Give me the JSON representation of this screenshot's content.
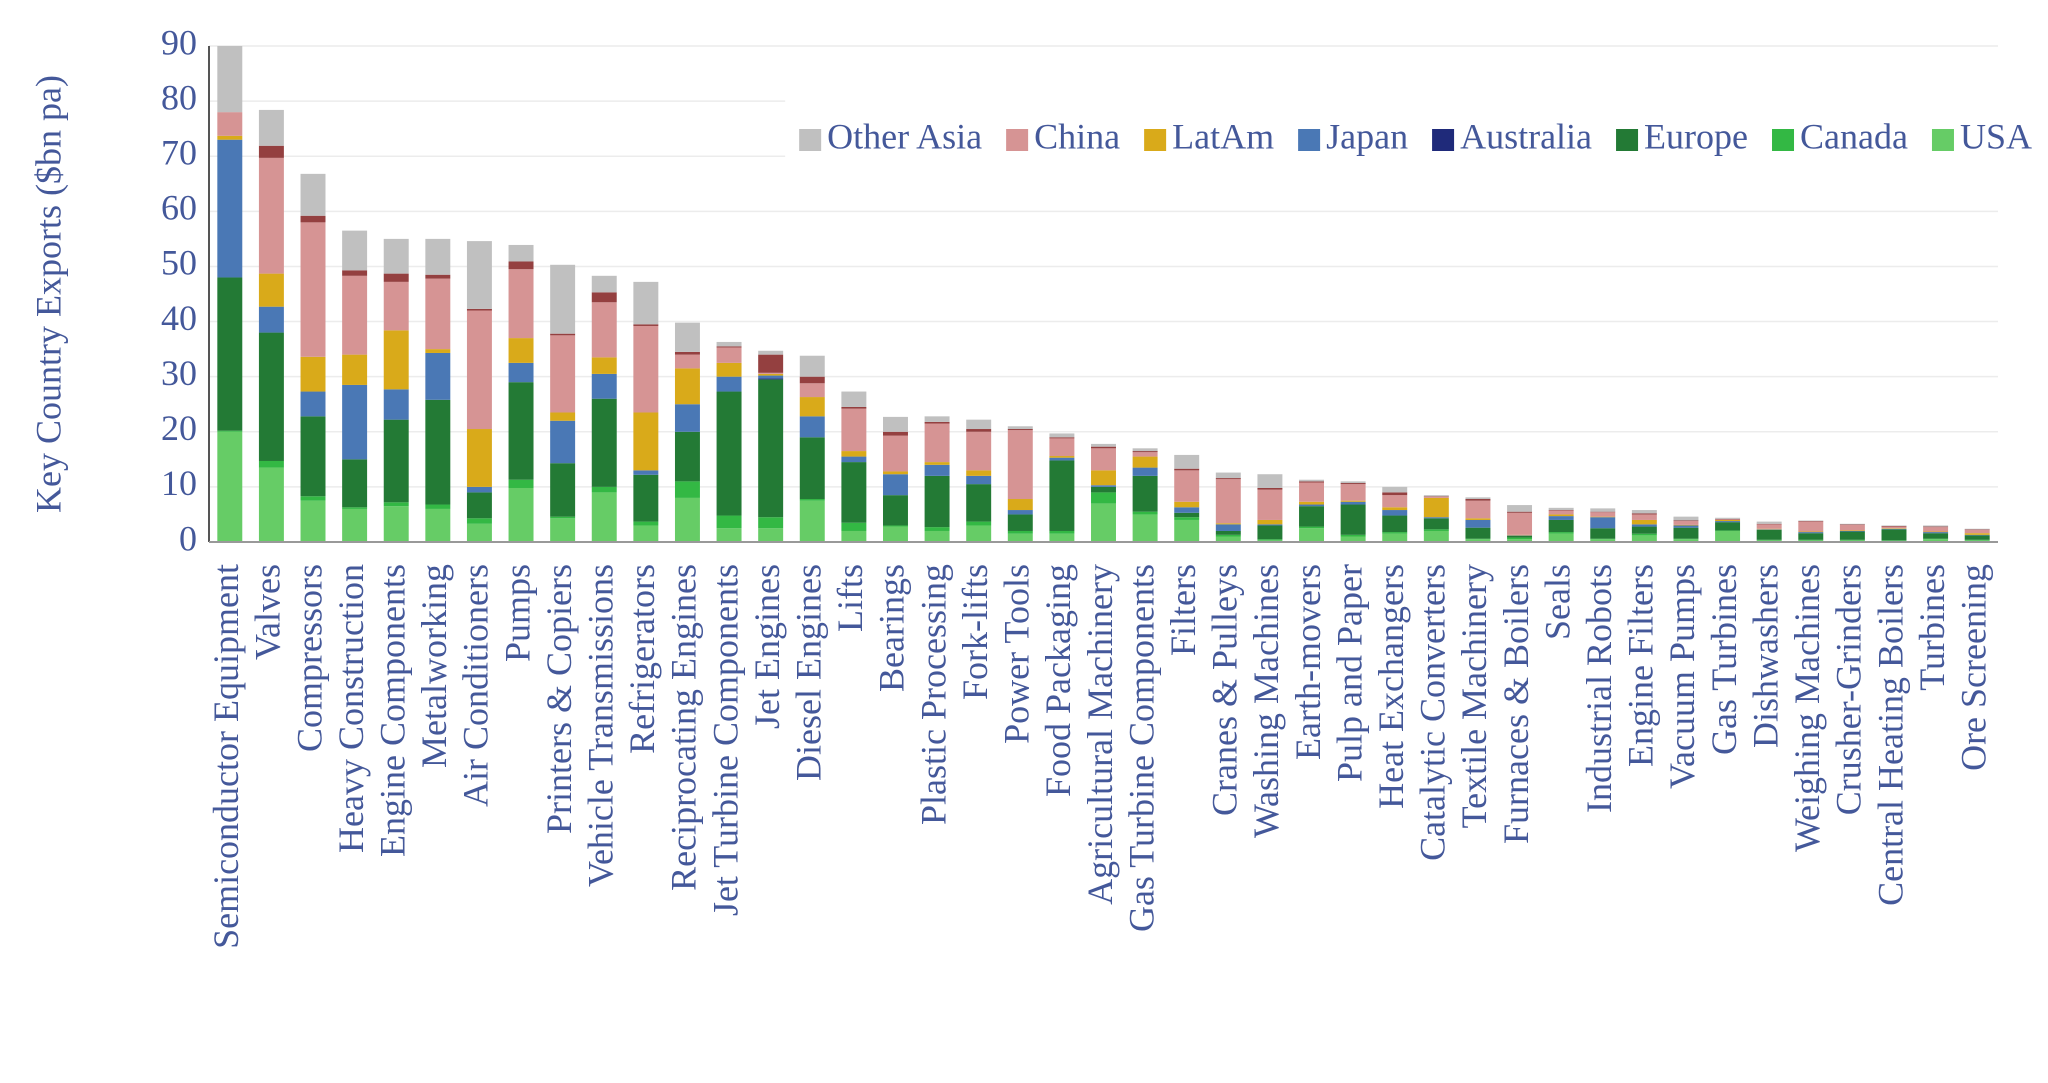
{
  "chart_data": {
    "type": "bar",
    "stacked": true,
    "ylabel": "Key Country Exports ($bn pa)",
    "categories": [
      "Semiconductor Equipment",
      "Valves",
      "Compressors",
      "Heavy Construction",
      "Engine Components",
      "Metalworking",
      "Air Conditioners",
      "Pumps",
      "Printers & Copiers",
      "Vehicle Transmissions",
      "Refrigerators",
      "Reciprocating Engines",
      "Jet Turbine Components",
      "Jet Engines",
      "Diesel Engines",
      "Lifts",
      "Bearings",
      "Plastic Processing",
      "Fork-lifts",
      "Power Tools",
      "Food Packaging",
      "Agricultural Machinery",
      "Gas Turbine Components",
      "Filters",
      "Cranes & Pulleys",
      "Washing Machines",
      "Earth-movers",
      "Pulp and Paper",
      "Heat Exchangers",
      "Catalytic Converters",
      "Textile Machinery",
      "Furnaces & Boilers",
      "Seals",
      "Industrial Robots",
      "Engine Filters",
      "Vacuum Pumps",
      "Gas Turbines",
      "Dishwashers",
      "Weighing Machines",
      "Crusher-Grinders",
      "Central Heating Boilers",
      "Turbines",
      "Ore Screening"
    ],
    "series": [
      {
        "name": "USA",
        "color": "#66cc66",
        "values": [
          20,
          13.5,
          7.5,
          6,
          6.5,
          6,
          3.3,
          9.8,
          4.3,
          9,
          3,
          8,
          2.5,
          2.5,
          7.5,
          2,
          2.8,
          2,
          3,
          1.5,
          1.5,
          7,
          5,
          4,
          1,
          0.3,
          2.5,
          1,
          1.5,
          2,
          0.5,
          0.5,
          1.5,
          0.5,
          1.2,
          0.5,
          2,
          0.3,
          0.3,
          0.3,
          0.2,
          0.5,
          0.3
        ]
      },
      {
        "name": "Canada",
        "color": "#33b844",
        "values": [
          0.2,
          1.2,
          0.8,
          0.3,
          0.7,
          0.8,
          1,
          1.5,
          0.3,
          1,
          0.7,
          3,
          2.3,
          2,
          0.3,
          1.5,
          0.2,
          0.7,
          0.7,
          0.5,
          0.5,
          2,
          0.5,
          0.5,
          0.3,
          0.2,
          0.3,
          0.3,
          0.3,
          0.3,
          0.1,
          0.3,
          0.3,
          0.1,
          0.3,
          0.1,
          0.1,
          0.1,
          0.1,
          0.1,
          0.1,
          0.1,
          0.1
        ]
      },
      {
        "name": "Europe",
        "color": "#237a35",
        "values": [
          27.8,
          23.3,
          14.5,
          8.7,
          15,
          19,
          4.7,
          17.7,
          9.7,
          16,
          8.5,
          9,
          22.5,
          25,
          11.2,
          11,
          5.5,
          9.3,
          6.8,
          3,
          12.8,
          1,
          6.5,
          0.8,
          0.7,
          2.5,
          3.7,
          5.5,
          3,
          2,
          2,
          0.3,
          2.2,
          1.9,
          1.3,
          2,
          1.5,
          1.8,
          1.2,
          1.5,
          2,
          1,
          0.8
        ]
      },
      {
        "name": "Australia",
        "color": "#1f2a7a",
        "values": [
          0,
          0,
          0,
          0,
          0,
          0,
          0,
          0,
          0,
          0,
          0,
          0,
          0,
          0.2,
          0,
          0,
          0,
          0,
          0,
          0,
          0,
          0,
          0,
          0,
          0,
          0,
          0,
          0,
          0,
          0,
          0,
          0,
          0,
          0,
          0,
          0,
          0,
          0,
          0,
          0,
          0,
          0,
          0
        ]
      },
      {
        "name": "Japan",
        "color": "#4a78b5",
        "values": [
          25,
          4.7,
          4.5,
          13.5,
          5.5,
          8.5,
          1,
          3.5,
          7.7,
          4.5,
          0.8,
          5,
          2.7,
          0.5,
          3.8,
          1,
          3.8,
          2,
          1.5,
          0.8,
          0.5,
          0.3,
          1.5,
          1,
          1.2,
          0.2,
          0.3,
          0.5,
          1,
          0.2,
          1.4,
          0.1,
          0.7,
          2,
          0.4,
          0.4,
          0.2,
          0.1,
          0.2,
          0.1,
          0.1,
          0.2,
          0.1
        ]
      },
      {
        "name": "LatAm",
        "color": "#d9aa1a",
        "values": [
          0.7,
          6,
          6.3,
          5.5,
          10.7,
          0.7,
          10.5,
          4.5,
          1.5,
          3,
          10.5,
          6.5,
          2.5,
          0.3,
          3.5,
          1,
          0.5,
          0.5,
          1,
          2,
          0.3,
          2.7,
          2,
          1,
          0.2,
          0.8,
          0.5,
          0.2,
          0.5,
          3.5,
          0.3,
          0.1,
          0.3,
          0.1,
          0.8,
          0.1,
          0.2,
          0.1,
          0.1,
          0.1,
          0.1,
          0.1,
          0.3
        ]
      },
      {
        "name": "China",
        "color": "#d69494",
        "values": [
          4.3,
          21,
          24.4,
          14.3,
          8.8,
          12.8,
          21.5,
          12.5,
          14,
          10,
          15.7,
          2.5,
          2.8,
          0.2,
          2.5,
          7.7,
          6.5,
          7,
          7,
          12.5,
          3.2,
          4,
          0.8,
          5.7,
          8,
          5.5,
          3.5,
          3,
          2.2,
          0.2,
          3.2,
          4,
          0.7,
          0.8,
          1,
          0.7,
          0.1,
          0.8,
          1.8,
          1,
          0.3,
          0.8,
          0.6
        ]
      },
      {
        "name": null,
        "color": "#944040",
        "values": [
          0,
          2.2,
          1.2,
          1,
          1.5,
          0.7,
          0.3,
          1.4,
          0.3,
          1.8,
          0.3,
          0.5,
          0.2,
          3.3,
          1.2,
          0.3,
          0.7,
          0.3,
          0.5,
          0.2,
          0.2,
          0.3,
          0.2,
          0.3,
          0.2,
          0.3,
          0.2,
          0.2,
          0.5,
          0.1,
          0.3,
          0.2,
          0.1,
          0.1,
          0.2,
          0.1,
          0.1,
          0.1,
          0.1,
          0.1,
          0.1,
          0.1,
          0.1
        ]
      },
      {
        "name": "Other Asia",
        "color": "#c0c0c0",
        "values": [
          12,
          6.5,
          7.6,
          7.2,
          6.3,
          6.5,
          12.3,
          3,
          12.5,
          3,
          7.7,
          5.3,
          0.8,
          0.7,
          3.8,
          2.8,
          2.7,
          1,
          1.7,
          0.5,
          0.7,
          0.5,
          0.5,
          2.5,
          1,
          2.5,
          0.3,
          0.3,
          1,
          0.2,
          0.3,
          1.2,
          0.4,
          0.6,
          0.6,
          0.7,
          0.2,
          0.4,
          0.1,
          0.1,
          0.1,
          0.2,
          0.1
        ]
      }
    ],
    "ylim": [
      0,
      90
    ],
    "yticks": [
      0,
      10,
      20,
      30,
      40,
      50,
      60,
      70,
      80,
      90
    ],
    "grid": true,
    "legend": "top-right"
  }
}
